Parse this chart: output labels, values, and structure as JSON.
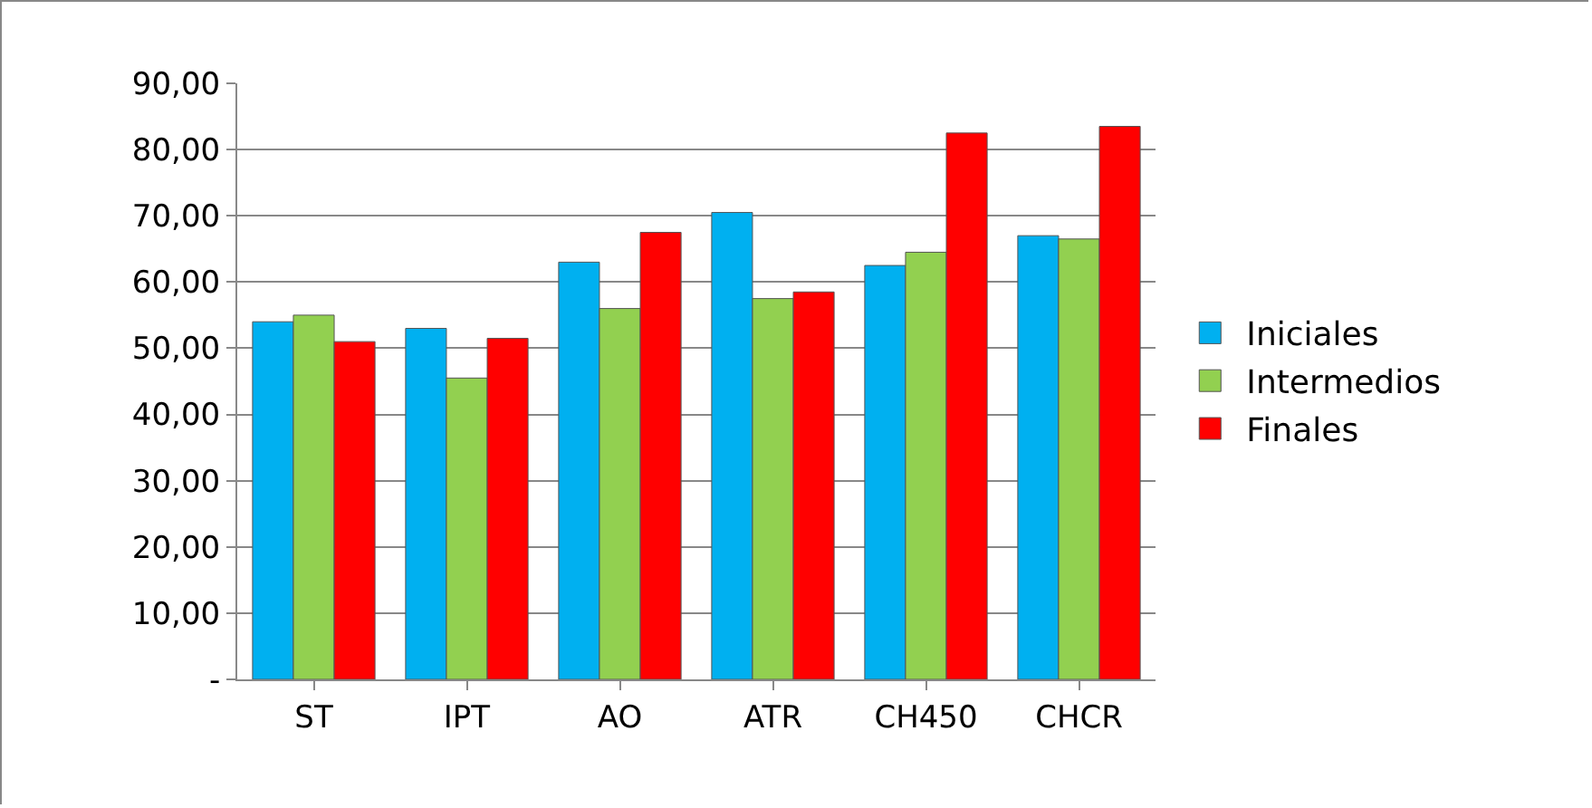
{
  "chart_data": {
    "type": "bar",
    "categories": [
      "ST",
      "IPT",
      "AO",
      "ATR",
      "CH450",
      "CHCR"
    ],
    "series": [
      {
        "name": "Iniciales",
        "color": "#00b0f0",
        "values": [
          54,
          53,
          63,
          70.5,
          62.5,
          67
        ]
      },
      {
        "name": "Intermedios",
        "color": "#92d050",
        "values": [
          55,
          45.5,
          56,
          57.5,
          64.5,
          66.5
        ]
      },
      {
        "name": "Finales",
        "color": "#ff0000",
        "values": [
          51,
          51.5,
          67.5,
          58.5,
          82.5,
          83.5
        ]
      }
    ],
    "ylim": [
      0,
      90
    ],
    "yticks": [
      {
        "value": 0,
        "label": "-"
      },
      {
        "value": 10,
        "label": "10,00"
      },
      {
        "value": 20,
        "label": "20,00"
      },
      {
        "value": 30,
        "label": "30,00"
      },
      {
        "value": 40,
        "label": "40,00"
      },
      {
        "value": 50,
        "label": "50,00"
      },
      {
        "value": 60,
        "label": "60,00"
      },
      {
        "value": 70,
        "label": "70,00"
      },
      {
        "value": 80,
        "label": "80,00"
      },
      {
        "value": 90,
        "label": "90,00"
      }
    ],
    "grid": "y",
    "legend": "right"
  }
}
